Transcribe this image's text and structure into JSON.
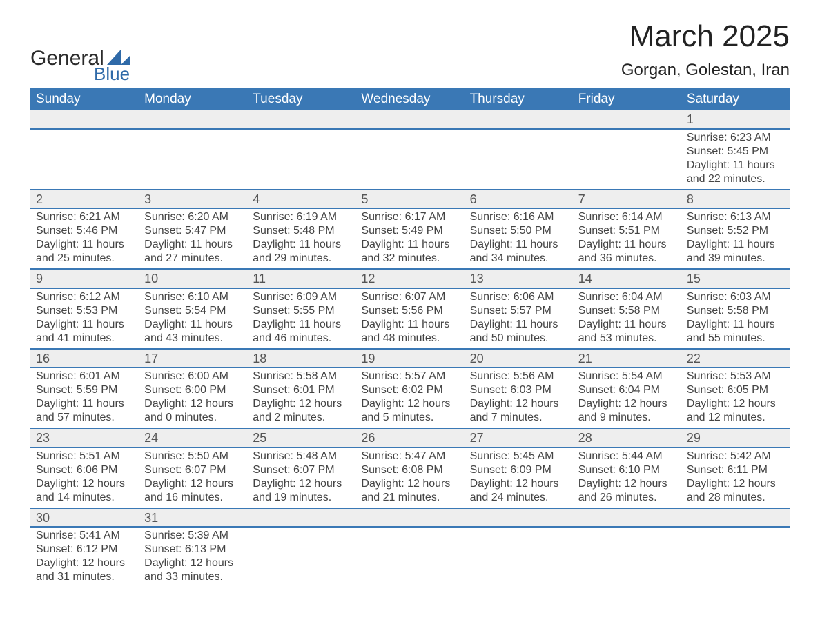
{
  "logo": {
    "line1": "General",
    "line2": "Blue"
  },
  "header": {
    "title": "March 2025",
    "subtitle": "Gorgan, Golestan, Iran"
  },
  "colors": {
    "header_blue": "#3a78b5",
    "divider_blue": "#3a78b5",
    "cell_grey": "#eeeeee",
    "page_bg": "#ffffff",
    "logo_dark": "#2b2b2b",
    "logo_blue": "#2f6aa8"
  },
  "weekday_labels": [
    "Sunday",
    "Monday",
    "Tuesday",
    "Wednesday",
    "Thursday",
    "Friday",
    "Saturday"
  ],
  "weeks": [
    [
      null,
      null,
      null,
      null,
      null,
      null,
      {
        "day": "1",
        "sunrise": "Sunrise: 6:23 AM",
        "sunset": "Sunset: 5:45 PM",
        "daylight": "Daylight: 11 hours and 22 minutes."
      }
    ],
    [
      {
        "day": "2",
        "sunrise": "Sunrise: 6:21 AM",
        "sunset": "Sunset: 5:46 PM",
        "daylight": "Daylight: 11 hours and 25 minutes."
      },
      {
        "day": "3",
        "sunrise": "Sunrise: 6:20 AM",
        "sunset": "Sunset: 5:47 PM",
        "daylight": "Daylight: 11 hours and 27 minutes."
      },
      {
        "day": "4",
        "sunrise": "Sunrise: 6:19 AM",
        "sunset": "Sunset: 5:48 PM",
        "daylight": "Daylight: 11 hours and 29 minutes."
      },
      {
        "day": "5",
        "sunrise": "Sunrise: 6:17 AM",
        "sunset": "Sunset: 5:49 PM",
        "daylight": "Daylight: 11 hours and 32 minutes."
      },
      {
        "day": "6",
        "sunrise": "Sunrise: 6:16 AM",
        "sunset": "Sunset: 5:50 PM",
        "daylight": "Daylight: 11 hours and 34 minutes."
      },
      {
        "day": "7",
        "sunrise": "Sunrise: 6:14 AM",
        "sunset": "Sunset: 5:51 PM",
        "daylight": "Daylight: 11 hours and 36 minutes."
      },
      {
        "day": "8",
        "sunrise": "Sunrise: 6:13 AM",
        "sunset": "Sunset: 5:52 PM",
        "daylight": "Daylight: 11 hours and 39 minutes."
      }
    ],
    [
      {
        "day": "9",
        "sunrise": "Sunrise: 6:12 AM",
        "sunset": "Sunset: 5:53 PM",
        "daylight": "Daylight: 11 hours and 41 minutes."
      },
      {
        "day": "10",
        "sunrise": "Sunrise: 6:10 AM",
        "sunset": "Sunset: 5:54 PM",
        "daylight": "Daylight: 11 hours and 43 minutes."
      },
      {
        "day": "11",
        "sunrise": "Sunrise: 6:09 AM",
        "sunset": "Sunset: 5:55 PM",
        "daylight": "Daylight: 11 hours and 46 minutes."
      },
      {
        "day": "12",
        "sunrise": "Sunrise: 6:07 AM",
        "sunset": "Sunset: 5:56 PM",
        "daylight": "Daylight: 11 hours and 48 minutes."
      },
      {
        "day": "13",
        "sunrise": "Sunrise: 6:06 AM",
        "sunset": "Sunset: 5:57 PM",
        "daylight": "Daylight: 11 hours and 50 minutes."
      },
      {
        "day": "14",
        "sunrise": "Sunrise: 6:04 AM",
        "sunset": "Sunset: 5:58 PM",
        "daylight": "Daylight: 11 hours and 53 minutes."
      },
      {
        "day": "15",
        "sunrise": "Sunrise: 6:03 AM",
        "sunset": "Sunset: 5:58 PM",
        "daylight": "Daylight: 11 hours and 55 minutes."
      }
    ],
    [
      {
        "day": "16",
        "sunrise": "Sunrise: 6:01 AM",
        "sunset": "Sunset: 5:59 PM",
        "daylight": "Daylight: 11 hours and 57 minutes."
      },
      {
        "day": "17",
        "sunrise": "Sunrise: 6:00 AM",
        "sunset": "Sunset: 6:00 PM",
        "daylight": "Daylight: 12 hours and 0 minutes."
      },
      {
        "day": "18",
        "sunrise": "Sunrise: 5:58 AM",
        "sunset": "Sunset: 6:01 PM",
        "daylight": "Daylight: 12 hours and 2 minutes."
      },
      {
        "day": "19",
        "sunrise": "Sunrise: 5:57 AM",
        "sunset": "Sunset: 6:02 PM",
        "daylight": "Daylight: 12 hours and 5 minutes."
      },
      {
        "day": "20",
        "sunrise": "Sunrise: 5:56 AM",
        "sunset": "Sunset: 6:03 PM",
        "daylight": "Daylight: 12 hours and 7 minutes."
      },
      {
        "day": "21",
        "sunrise": "Sunrise: 5:54 AM",
        "sunset": "Sunset: 6:04 PM",
        "daylight": "Daylight: 12 hours and 9 minutes."
      },
      {
        "day": "22",
        "sunrise": "Sunrise: 5:53 AM",
        "sunset": "Sunset: 6:05 PM",
        "daylight": "Daylight: 12 hours and 12 minutes."
      }
    ],
    [
      {
        "day": "23",
        "sunrise": "Sunrise: 5:51 AM",
        "sunset": "Sunset: 6:06 PM",
        "daylight": "Daylight: 12 hours and 14 minutes."
      },
      {
        "day": "24",
        "sunrise": "Sunrise: 5:50 AM",
        "sunset": "Sunset: 6:07 PM",
        "daylight": "Daylight: 12 hours and 16 minutes."
      },
      {
        "day": "25",
        "sunrise": "Sunrise: 5:48 AM",
        "sunset": "Sunset: 6:07 PM",
        "daylight": "Daylight: 12 hours and 19 minutes."
      },
      {
        "day": "26",
        "sunrise": "Sunrise: 5:47 AM",
        "sunset": "Sunset: 6:08 PM",
        "daylight": "Daylight: 12 hours and 21 minutes."
      },
      {
        "day": "27",
        "sunrise": "Sunrise: 5:45 AM",
        "sunset": "Sunset: 6:09 PM",
        "daylight": "Daylight: 12 hours and 24 minutes."
      },
      {
        "day": "28",
        "sunrise": "Sunrise: 5:44 AM",
        "sunset": "Sunset: 6:10 PM",
        "daylight": "Daylight: 12 hours and 26 minutes."
      },
      {
        "day": "29",
        "sunrise": "Sunrise: 5:42 AM",
        "sunset": "Sunset: 6:11 PM",
        "daylight": "Daylight: 12 hours and 28 minutes."
      }
    ],
    [
      {
        "day": "30",
        "sunrise": "Sunrise: 5:41 AM",
        "sunset": "Sunset: 6:12 PM",
        "daylight": "Daylight: 12 hours and 31 minutes."
      },
      {
        "day": "31",
        "sunrise": "Sunrise: 5:39 AM",
        "sunset": "Sunset: 6:13 PM",
        "daylight": "Daylight: 12 hours and 33 minutes."
      },
      null,
      null,
      null,
      null,
      null
    ]
  ]
}
